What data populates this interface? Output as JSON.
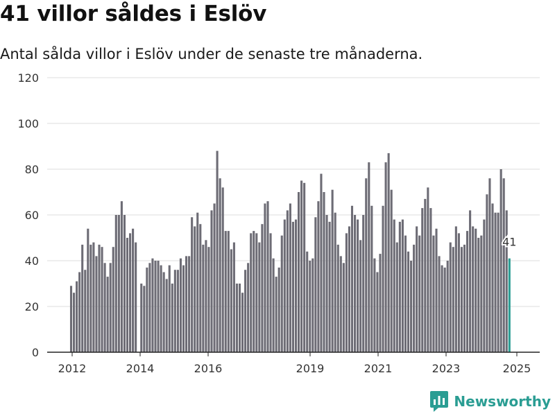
{
  "header": {
    "title": "41 villor såldes i Eslöv",
    "subtitle": "Antal sålda villor i Eslöv under de senaste tre månaderna."
  },
  "brand": {
    "name": "Newsworthy",
    "icon": "newsworthy-chart-icon",
    "color": "#2a9d93"
  },
  "colors": {
    "bar": "#6d6c75",
    "highlight": "#2a9d93",
    "grid": "#dcdcdc",
    "axis": "#222222"
  },
  "chart_data": {
    "type": "bar",
    "title": "",
    "xlabel": "",
    "ylabel": "",
    "ylim": [
      0,
      120
    ],
    "yticks": [
      0,
      20,
      40,
      60,
      80,
      100,
      120
    ],
    "xticks": [
      "2012",
      "2014",
      "2016",
      "2019",
      "2021",
      "2023",
      "2025"
    ],
    "grid": true,
    "highlight_label": "41",
    "series": [
      {
        "name": "",
        "values": [
          29,
          26,
          31,
          35,
          47,
          36,
          54,
          47,
          48,
          42,
          47,
          46,
          39,
          33,
          39,
          46,
          60,
          60,
          66,
          60,
          50,
          52,
          54,
          48,
          0,
          30,
          29,
          37,
          39,
          41,
          40,
          40,
          38,
          35,
          32,
          38,
          30,
          36,
          36,
          41,
          38,
          42,
          42,
          59,
          55,
          61,
          56,
          47,
          49,
          46,
          62,
          65,
          88,
          76,
          72,
          53,
          53,
          45,
          48,
          30,
          30,
          26,
          36,
          39,
          52,
          53,
          52,
          48,
          56,
          65,
          66,
          52,
          41,
          33,
          37,
          51,
          58,
          62,
          65,
          57,
          58,
          70,
          75,
          74,
          44,
          40,
          41,
          59,
          66,
          78,
          70,
          60,
          57,
          71,
          61,
          47,
          42,
          39,
          52,
          55,
          64,
          60,
          58,
          49,
          60,
          76,
          83,
          64,
          41,
          35,
          43,
          64,
          83,
          87,
          71,
          58,
          48,
          57,
          58,
          51,
          44,
          40,
          47,
          55,
          51,
          63,
          67,
          72,
          63,
          51,
          54,
          42,
          38,
          37,
          40,
          48,
          46,
          55,
          52,
          46,
          47,
          53,
          62,
          55,
          54,
          50,
          51,
          58,
          69,
          76,
          65,
          61,
          61,
          80,
          76,
          62,
          41
        ]
      }
    ]
  }
}
